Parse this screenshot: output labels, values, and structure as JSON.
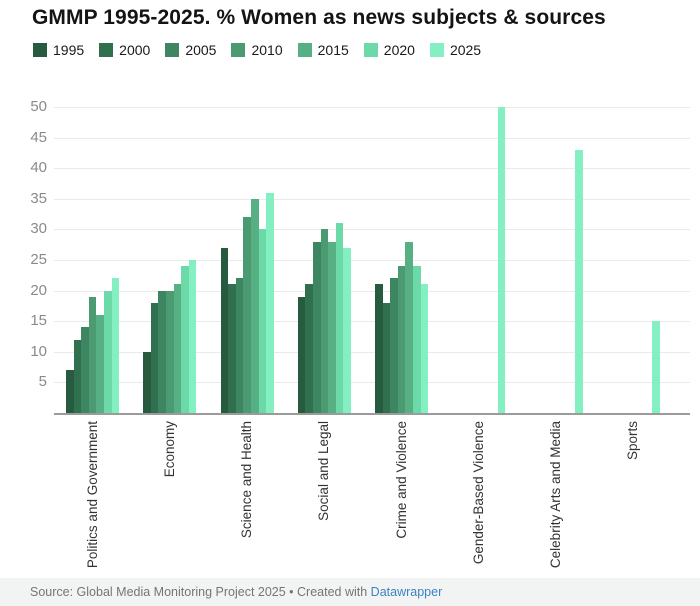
{
  "title": "GMMP 1995-2025. % Women as news subjects & sources",
  "legend": {
    "items": [
      {
        "label": "1995",
        "color": "#265b40"
      },
      {
        "label": "2000",
        "color": "#30704f"
      },
      {
        "label": "2005",
        "color": "#3e8662"
      },
      {
        "label": "2010",
        "color": "#4b9a72"
      },
      {
        "label": "2015",
        "color": "#57b083"
      },
      {
        "label": "2020",
        "color": "#6cdaa8"
      },
      {
        "label": "2025",
        "color": "#84efc0"
      }
    ]
  },
  "chart_data": {
    "type": "bar",
    "title": "GMMP 1995-2025. % Women as news subjects & sources",
    "categories": [
      "Politics and Government",
      "Economy",
      "Science and Health",
      "Social and Legal",
      "Crime and Violence",
      "Gender-Based Violence",
      "Celebrity Arts and Media",
      "Sports"
    ],
    "series": [
      {
        "name": "1995",
        "color": "#265b40",
        "values": [
          7,
          10,
          27,
          19,
          21,
          null,
          null,
          null
        ]
      },
      {
        "name": "2000",
        "color": "#30704f",
        "values": [
          12,
          18,
          21,
          21,
          18,
          null,
          null,
          null
        ]
      },
      {
        "name": "2005",
        "color": "#3e8662",
        "values": [
          14,
          20,
          22,
          28,
          22,
          null,
          null,
          null
        ]
      },
      {
        "name": "2010",
        "color": "#4b9a72",
        "values": [
          19,
          20,
          32,
          30,
          24,
          null,
          null,
          null
        ]
      },
      {
        "name": "2015",
        "color": "#57b083",
        "values": [
          16,
          21,
          35,
          28,
          28,
          null,
          null,
          null
        ]
      },
      {
        "name": "2020",
        "color": "#6cdaa8",
        "values": [
          20,
          24,
          30,
          31,
          24,
          null,
          null,
          null
        ]
      },
      {
        "name": "2025",
        "color": "#84efc0",
        "values": [
          22,
          25,
          36,
          27,
          21,
          50,
          43,
          15
        ]
      }
    ],
    "xlabel": "",
    "ylabel": "",
    "ylim": [
      0,
      50
    ],
    "yticks": [
      5,
      10,
      15,
      20,
      25,
      30,
      35,
      40,
      45,
      50
    ],
    "grid": true,
    "legend_position": "top"
  },
  "footer": {
    "text": "Source: Global Media Monitoring Project 2025 • Created with ",
    "link": "Datawrapper",
    "link_color": "#3d82c4"
  }
}
